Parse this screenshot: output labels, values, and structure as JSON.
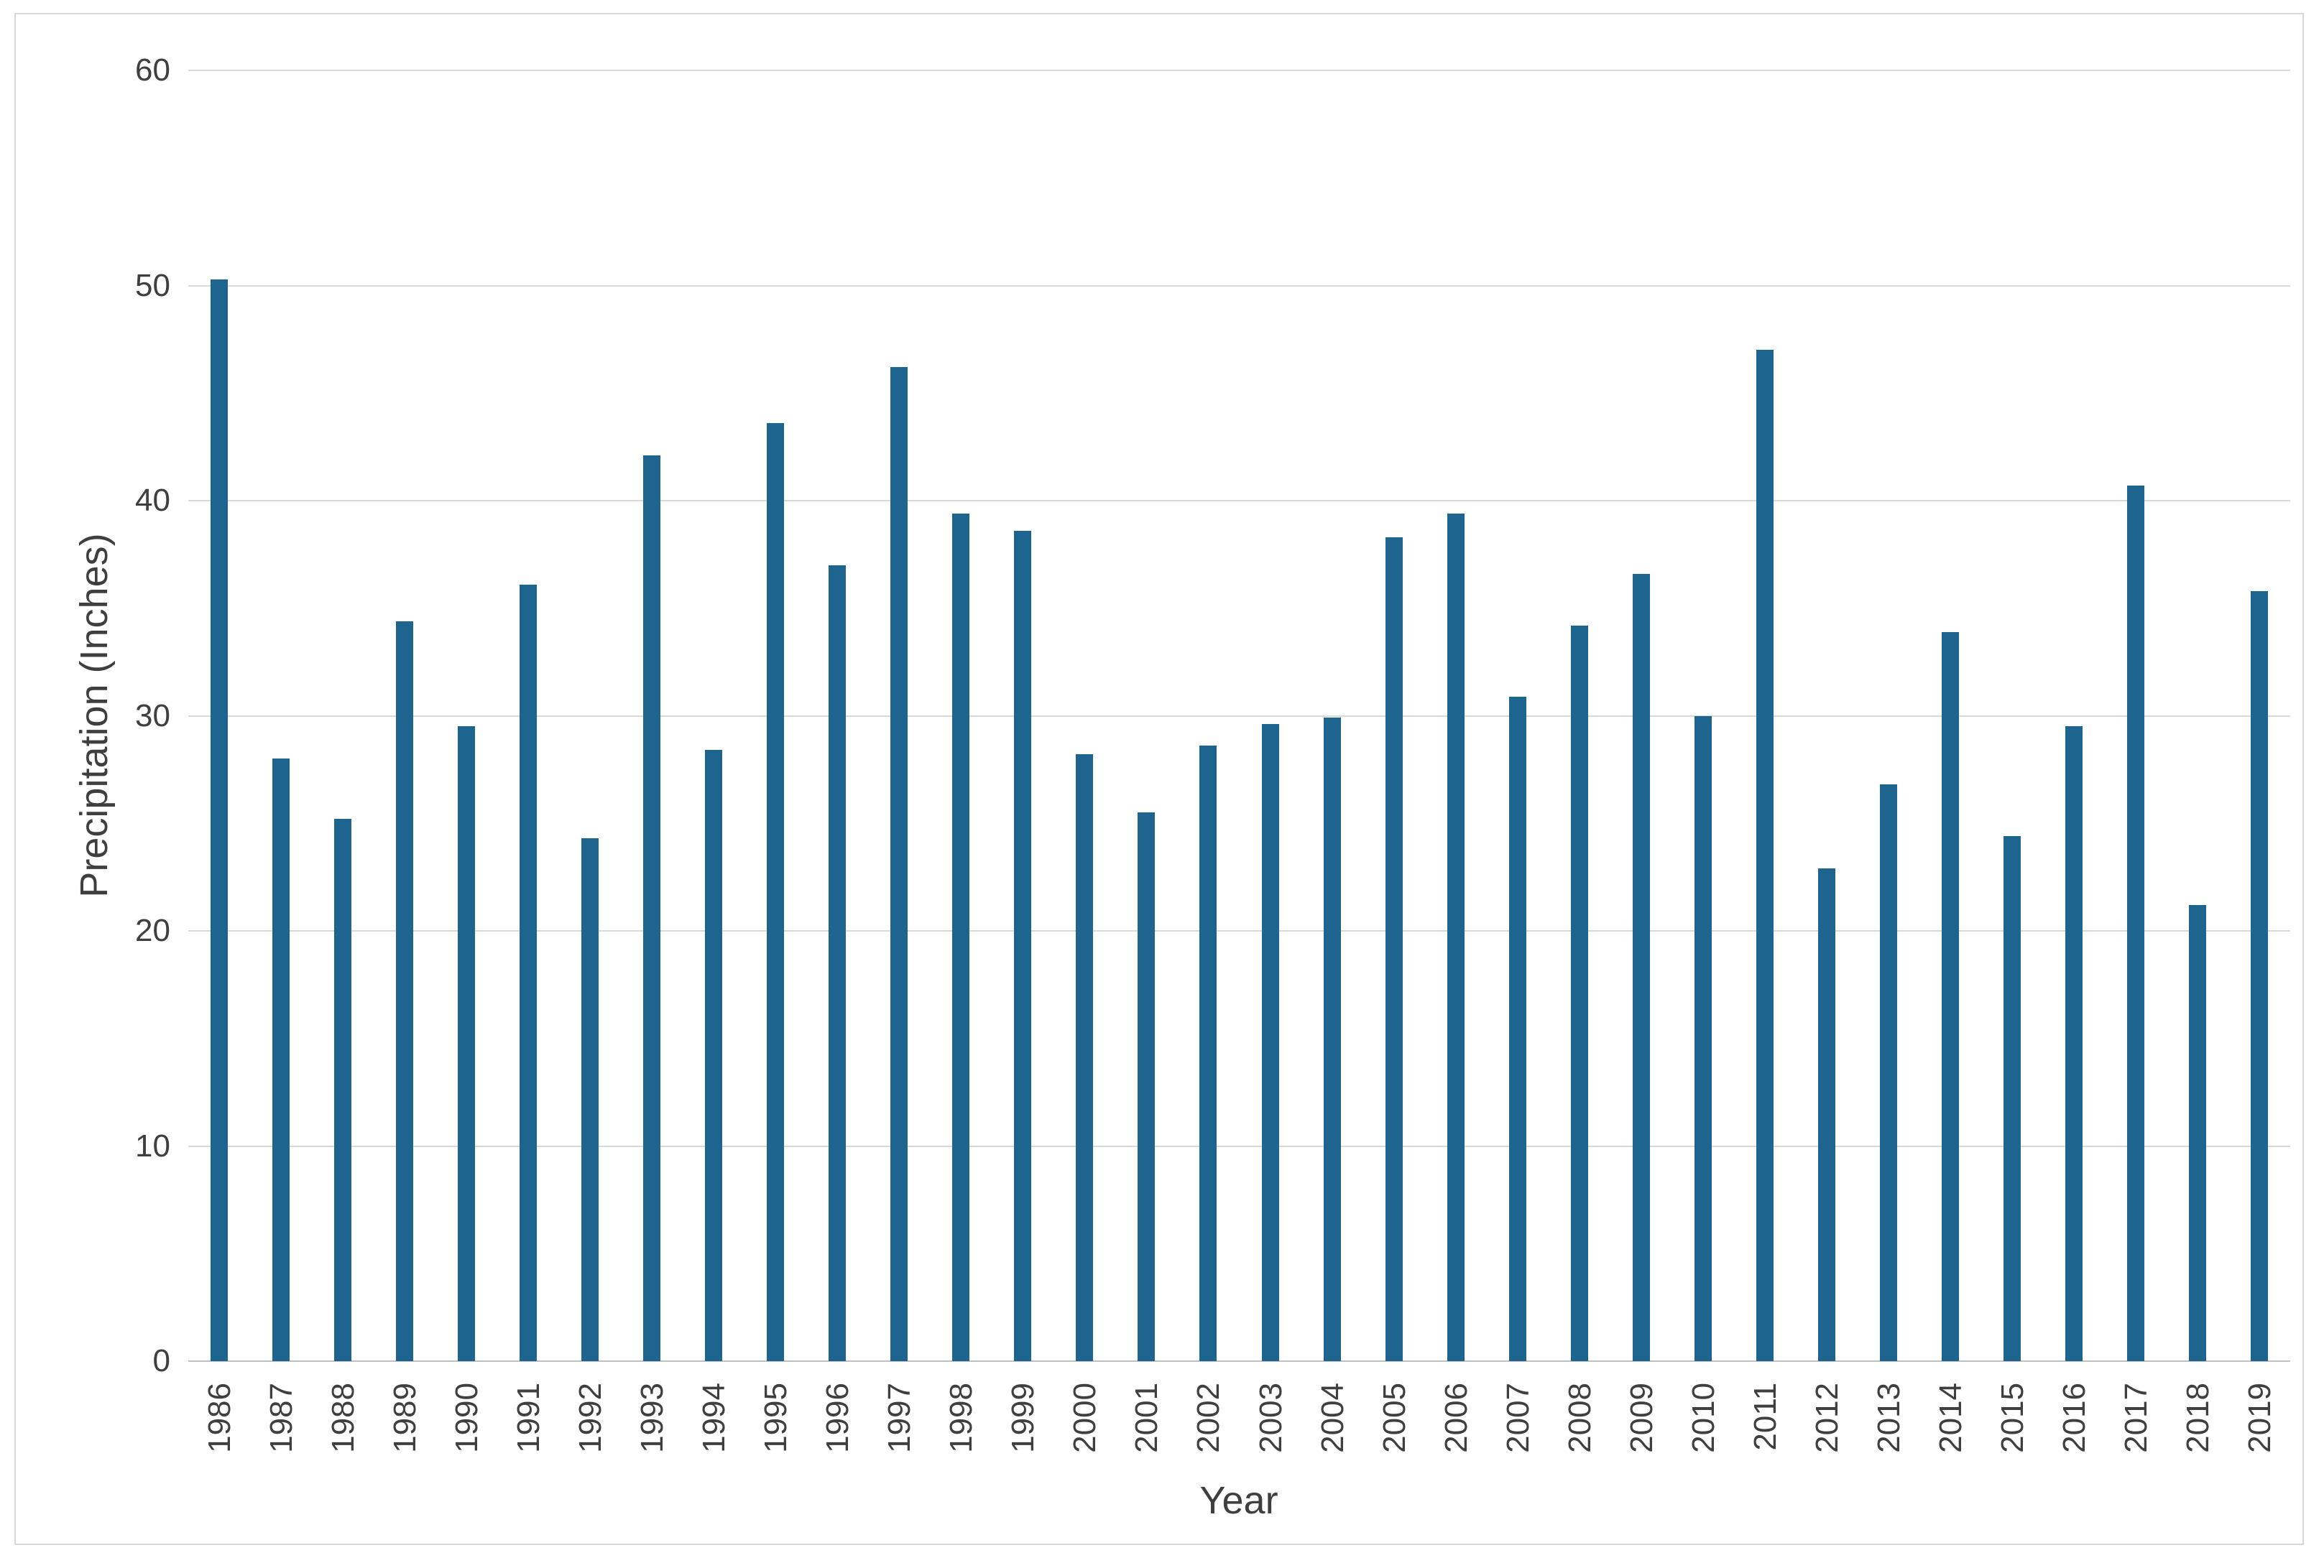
{
  "chart_data": {
    "type": "bar",
    "title": "",
    "xlabel": "Year",
    "ylabel": "Precipitation (Inches)",
    "categories": [
      "1986",
      "1987",
      "1988",
      "1989",
      "1990",
      "1991",
      "1992",
      "1993",
      "1994",
      "1995",
      "1996",
      "1997",
      "1998",
      "1999",
      "2000",
      "2001",
      "2002",
      "2003",
      "2004",
      "2005",
      "2006",
      "2007",
      "2008",
      "2009",
      "2010",
      "2011",
      "2012",
      "2013",
      "2014",
      "2015",
      "2016",
      "2017",
      "2018",
      "2019"
    ],
    "values": [
      50.3,
      28.0,
      25.2,
      34.4,
      29.5,
      36.1,
      24.3,
      42.1,
      28.4,
      43.6,
      37.0,
      46.2,
      39.4,
      38.6,
      28.2,
      25.5,
      28.6,
      29.6,
      29.9,
      38.3,
      39.4,
      30.9,
      34.2,
      36.6,
      30.0,
      47.0,
      22.9,
      26.8,
      33.9,
      24.4,
      29.5,
      40.7,
      21.2,
      35.8
    ],
    "ylim": [
      0,
      60
    ],
    "yticks": [
      0,
      10,
      20,
      30,
      40,
      50,
      60
    ],
    "grid": "horizontal-gridlines",
    "legend": "none"
  },
  "colors": {
    "bar": "#1d648f",
    "gridline": "#d9d9d9",
    "axis_line": "#bfbfbf",
    "text": "#3f3f3f",
    "frame_border": "#d7d7d7",
    "background": "#ffffff"
  }
}
